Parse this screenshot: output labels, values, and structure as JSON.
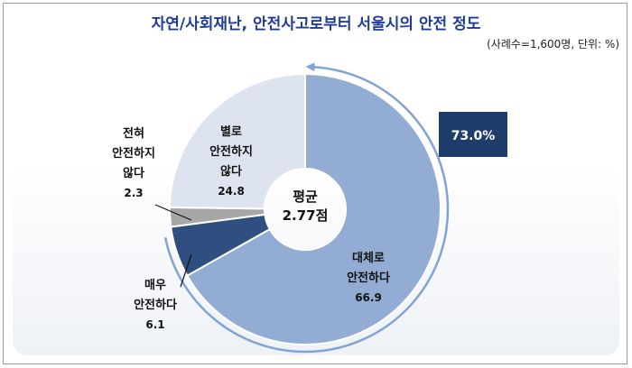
{
  "chart_data": {
    "type": "pie",
    "title": "자연/사회재난, 안전사고로부터 서울시의 안전 정도",
    "note": "(사례수=1,600명, 단위: %)",
    "center_label": [
      "평균",
      "2.77점"
    ],
    "summary": "73.0%",
    "slices": [
      {
        "label_lines": [
          "대체로",
          "안전하다"
        ],
        "value": 66.9,
        "color": "#93acd4"
      },
      {
        "label_lines": [
          "매우",
          "안전하다"
        ],
        "value": 6.1,
        "color": "#2e4f7f"
      },
      {
        "label_lines": [
          "전혀",
          "안전하지",
          "않다"
        ],
        "value": 2.3,
        "color": "#a7a7a7"
      },
      {
        "label_lines": [
          "별로",
          "안전하지",
          "않다"
        ],
        "value": 24.8,
        "color": "#dde4ef"
      }
    ],
    "colors": {
      "title": "#1f3c99",
      "summary_box": "#1f3d6b",
      "arrow": "#7fa3d4"
    }
  }
}
